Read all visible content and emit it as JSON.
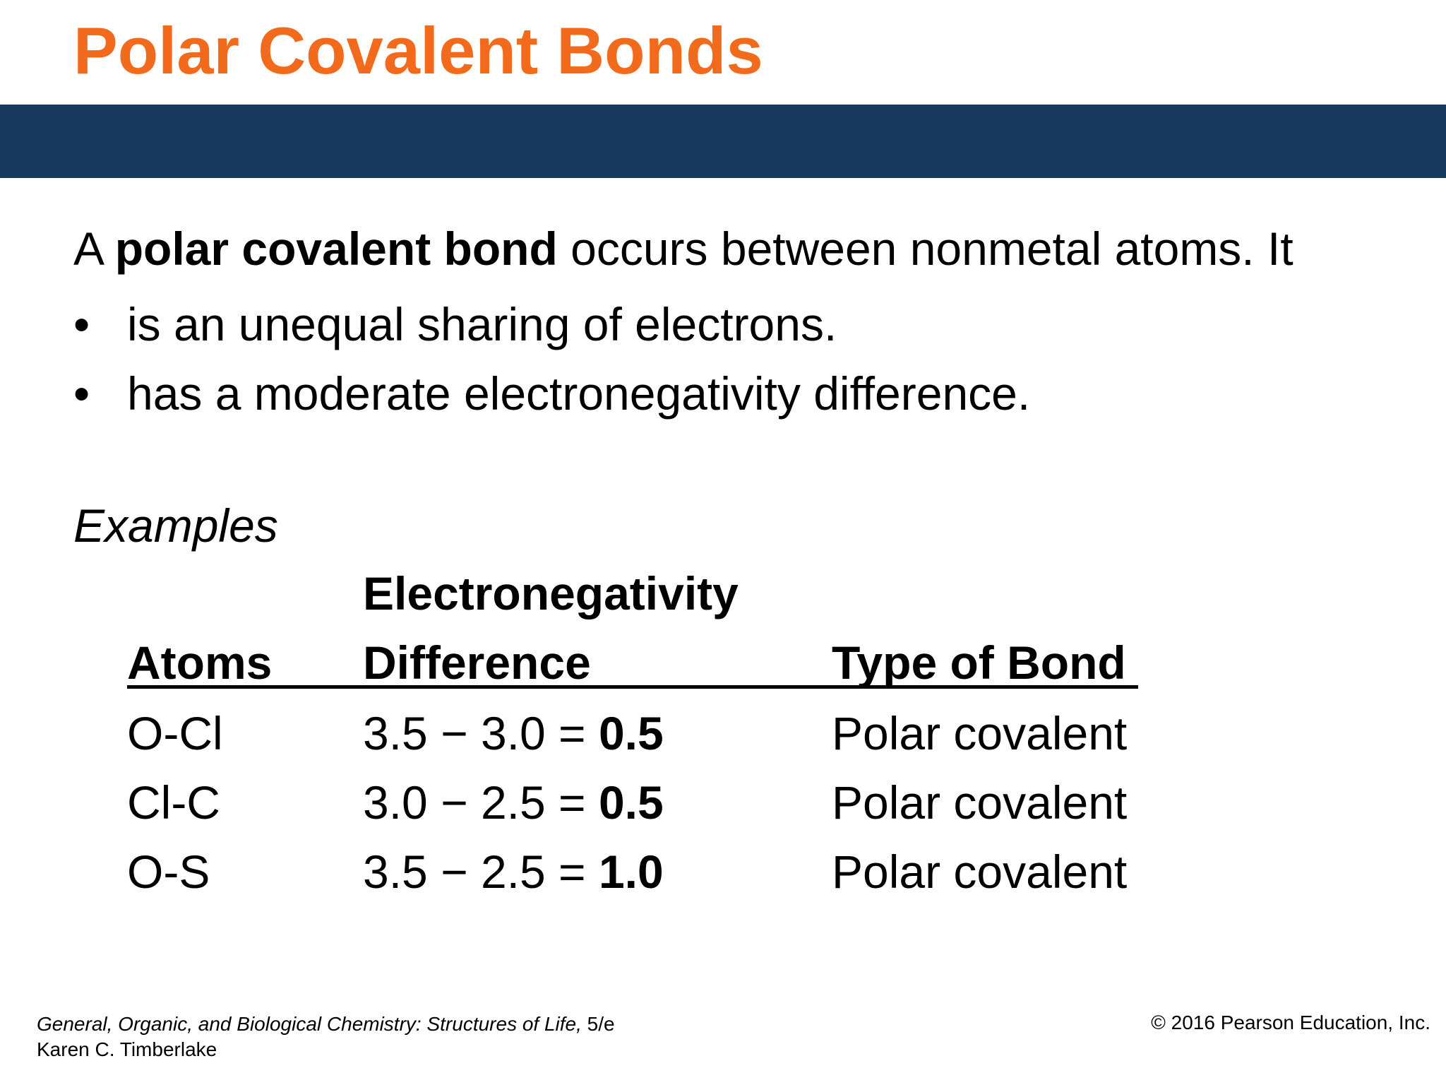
{
  "slide": {
    "title": "Polar Covalent Bonds",
    "colors": {
      "title": "#f26b1d",
      "band": "#193a5f"
    }
  },
  "intro": {
    "prefix": "A ",
    "term": "polar covalent bond",
    "suffix": " occurs between nonmetal atoms. It"
  },
  "bullets": [
    "is an unequal sharing of electrons.",
    "has a moderate electronegativity difference."
  ],
  "bullet_symbol": "•",
  "examples_label": "Examples",
  "table": {
    "headers": {
      "atoms": "Atoms",
      "difference_line1": "Electronegativity",
      "difference_line2": "Difference",
      "type": "Type of Bond"
    },
    "rows": [
      {
        "atoms": "O-Cl",
        "expr": "3.5 − 3.0 = ",
        "result": "0.5",
        "type": "Polar covalent"
      },
      {
        "atoms": "Cl-C",
        "expr": "3.0 − 2.5 = ",
        "result": "0.5",
        "type": "Polar covalent"
      },
      {
        "atoms": "O-S",
        "expr": "3.5 − 2.5 = ",
        "result": "1.0",
        "type": "Polar covalent"
      }
    ]
  },
  "footer": {
    "book_title": "General, Organic, and Biological Chemistry: Structures of Life,",
    "edition": " 5/e",
    "author": "Karen C. Timberlake",
    "copyright": "© 2016 Pearson Education, Inc."
  }
}
